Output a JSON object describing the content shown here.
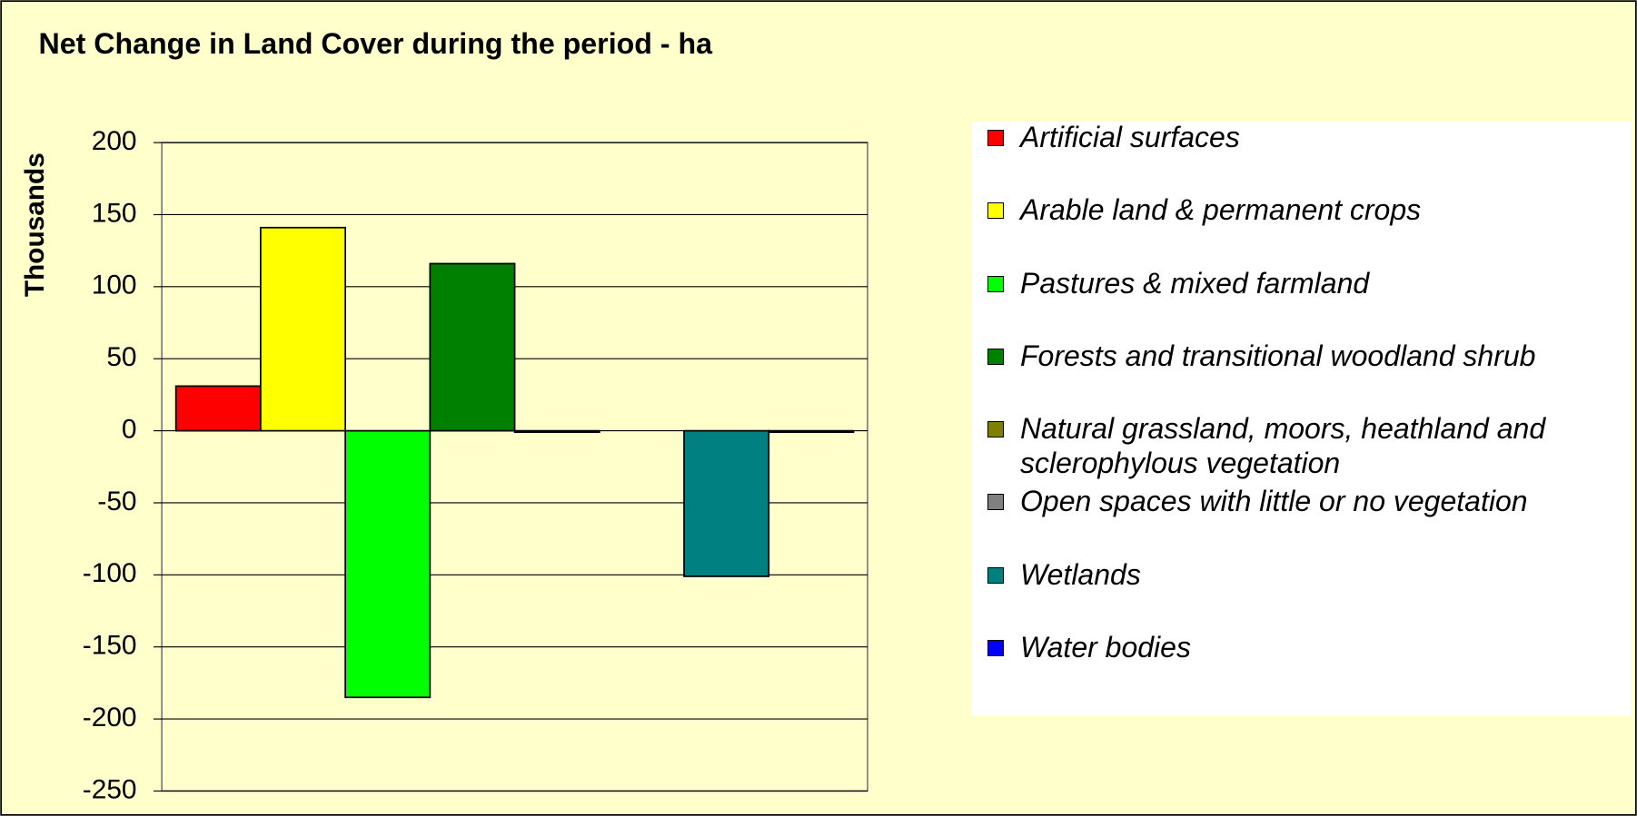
{
  "chart_data": {
    "type": "bar",
    "title": "Net Change in Land Cover during the period - ha",
    "y_label": "Thousands",
    "categories": [
      null
    ],
    "series": [
      {
        "name": "Artificial surfaces",
        "color": "#ff0000",
        "values": [
          31
        ]
      },
      {
        "name": "Arable land & permanent crops",
        "color": "#ffff00",
        "values": [
          141
        ]
      },
      {
        "name": "Pastures & mixed farmland",
        "color": "#00ff00",
        "values": [
          -185
        ]
      },
      {
        "name": "Forests and transitional woodland shrub",
        "color": "#008000",
        "values": [
          116
        ]
      },
      {
        "name": "Natural grassland, moors, heathland and sclerophylous vegetation",
        "color": "#808000",
        "values": [
          -1
        ]
      },
      {
        "name": "Open spaces with little or no vegetation",
        "color": "#808080",
        "values": [
          0
        ]
      },
      {
        "name": "Wetlands",
        "color": "#008080",
        "values": [
          -101
        ]
      },
      {
        "name": "Water bodies",
        "color": "#0000ff",
        "values": [
          -1
        ]
      }
    ],
    "ylim": [
      -250,
      200
    ],
    "yticks": [
      -250,
      -200,
      -150,
      -100,
      -50,
      0,
      50,
      100,
      150,
      200
    ],
    "grid": true
  }
}
